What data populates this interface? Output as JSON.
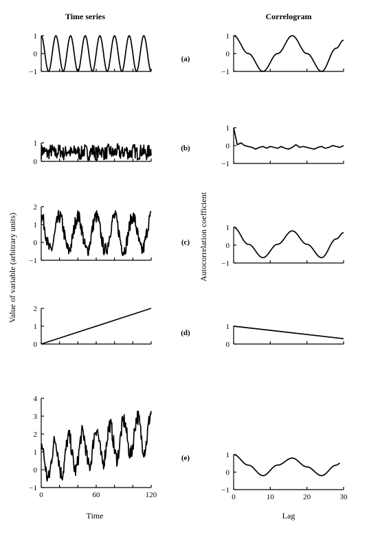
{
  "headers": {
    "left": "Time series",
    "right": "Correlogram"
  },
  "axis_labels": {
    "left_y": "Value of variable (arbitrary units)",
    "right_y": "Autocorrelation coefficient",
    "left_x": "Time",
    "right_x": "Lag"
  },
  "chart_data": [
    {
      "type": "line",
      "panel": "(a)",
      "side": "time-series",
      "xlim": [
        0,
        120
      ],
      "ylim": [
        -1,
        1
      ],
      "yticks": [
        "1",
        "0",
        "-1"
      ],
      "xticks": [],
      "grid": false,
      "generator": "sine"
    },
    {
      "type": "line",
      "panel": "(a)",
      "side": "correlogram",
      "xlim": [
        0,
        30
      ],
      "ylim": [
        -1,
        1
      ],
      "yticks": [
        "1",
        "0",
        "-1"
      ],
      "xticks": [],
      "grid": false,
      "x": [
        0,
        4,
        8,
        12,
        16,
        20,
        24,
        28,
        30
      ],
      "y": [
        1.0,
        0.0,
        -1.0,
        0.0,
        1.0,
        0.0,
        -1.0,
        0.3,
        0.75
      ]
    },
    {
      "type": "line",
      "panel": "(b)",
      "side": "time-series",
      "xlim": [
        0,
        120
      ],
      "ylim": [
        0,
        1
      ],
      "yticks": [
        "1",
        "0"
      ],
      "xticks": [],
      "grid": false,
      "generator": "noise"
    },
    {
      "type": "line",
      "panel": "(b)",
      "side": "correlogram",
      "xlim": [
        0,
        30
      ],
      "ylim": [
        -1,
        1
      ],
      "yticks": [
        "1",
        "0",
        "-1"
      ],
      "xticks": [],
      "grid": false,
      "x": [
        0,
        1,
        2,
        3,
        4,
        5,
        6,
        7,
        8,
        9,
        10,
        11,
        12,
        13,
        14,
        15,
        16,
        17,
        18,
        19,
        20,
        21,
        22,
        23,
        24,
        25,
        26,
        27,
        28,
        29,
        30
      ],
      "y": [
        1.0,
        0.05,
        0.15,
        0.0,
        -0.05,
        -0.1,
        -0.2,
        -0.1,
        -0.05,
        -0.15,
        -0.05,
        -0.1,
        -0.15,
        -0.05,
        -0.15,
        -0.2,
        -0.1,
        0.05,
        -0.1,
        -0.05,
        -0.1,
        -0.15,
        -0.2,
        -0.1,
        -0.05,
        -0.15,
        -0.1,
        0.0,
        -0.05,
        -0.1,
        0.0
      ]
    },
    {
      "type": "line",
      "panel": "(c)",
      "side": "time-series",
      "xlim": [
        0,
        120
      ],
      "ylim": [
        -1,
        2
      ],
      "yticks": [
        "2",
        "1",
        "0",
        "-1"
      ],
      "xticks": [],
      "grid": false,
      "generator": "noisy-sine"
    },
    {
      "type": "line",
      "panel": "(c)",
      "side": "correlogram",
      "xlim": [
        0,
        30
      ],
      "ylim": [
        -1,
        1
      ],
      "yticks": [
        "1",
        "0",
        "-1"
      ],
      "xticks": [],
      "grid": false,
      "x": [
        0,
        4,
        8,
        12,
        16,
        20,
        24,
        28,
        30
      ],
      "y": [
        1.0,
        0.05,
        -0.7,
        0.05,
        0.8,
        0.05,
        -0.7,
        0.35,
        0.7
      ]
    },
    {
      "type": "line",
      "panel": "(d)",
      "side": "time-series",
      "xlim": [
        0,
        120
      ],
      "ylim": [
        0,
        2
      ],
      "yticks": [
        "2",
        "1",
        "0"
      ],
      "xticks": [],
      "grid": false,
      "x": [
        0,
        120
      ],
      "y": [
        0,
        2
      ]
    },
    {
      "type": "line",
      "panel": "(d)",
      "side": "correlogram",
      "xlim": [
        0,
        30
      ],
      "ylim": [
        0,
        1
      ],
      "yticks": [
        "1",
        "0"
      ],
      "xticks": [],
      "grid": false,
      "x": [
        0,
        30
      ],
      "y": [
        1.0,
        0.3
      ]
    },
    {
      "type": "line",
      "panel": "(e)",
      "side": "time-series",
      "xlim": [
        0,
        120
      ],
      "ylim": [
        -1,
        4
      ],
      "yticks": [
        "4",
        "3",
        "2",
        "1",
        "0",
        "-1"
      ],
      "xticks": [
        "0",
        "60",
        "120"
      ],
      "grid": false,
      "generator": "trend-sine"
    },
    {
      "type": "line",
      "panel": "(e)",
      "side": "correlogram",
      "xlim": [
        0,
        30
      ],
      "ylim": [
        -1,
        1
      ],
      "yticks": [
        "1",
        "0",
        "-1"
      ],
      "xticks": [
        "0",
        "10",
        "20",
        "30"
      ],
      "grid": false,
      "x": [
        0,
        4,
        8,
        12,
        16,
        20,
        24,
        28,
        29
      ],
      "y": [
        1.0,
        0.4,
        -0.2,
        0.4,
        0.8,
        0.3,
        -0.2,
        0.4,
        0.5
      ]
    }
  ]
}
